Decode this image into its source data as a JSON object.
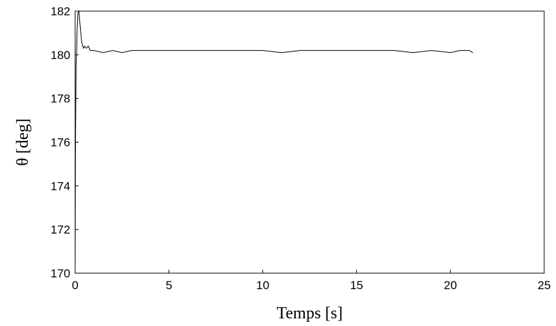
{
  "chart_data": {
    "type": "line",
    "title": "",
    "xlabel": "Temps [s]",
    "ylabel": "θ [deg]",
    "xlim": [
      0,
      25
    ],
    "ylim": [
      170,
      182
    ],
    "x_ticks": [
      0,
      5,
      10,
      15,
      20,
      25
    ],
    "y_ticks": [
      170,
      172,
      174,
      176,
      178,
      180,
      182
    ],
    "grid": false,
    "series": [
      {
        "x": [
          0.0,
          0.02,
          0.05,
          0.08,
          0.1,
          0.15,
          0.2,
          0.25,
          0.3,
          0.35,
          0.4,
          0.45,
          0.5,
          0.6,
          0.7,
          0.8,
          1.0,
          1.5,
          2.0,
          2.5,
          3.0,
          4.0,
          5.0,
          6.0,
          7.0,
          8.0,
          9.0,
          10.0,
          11.0,
          12.0,
          13.0,
          14.0,
          15.0,
          16.0,
          17.0,
          18.0,
          19.0,
          20.0,
          20.5,
          21.0,
          21.2
        ],
        "y": [
          170.0,
          176.0,
          179.5,
          180.3,
          181.0,
          181.9,
          182.0,
          181.5,
          181.0,
          180.6,
          180.4,
          180.3,
          180.4,
          180.3,
          180.4,
          180.2,
          180.2,
          180.1,
          180.2,
          180.1,
          180.2,
          180.2,
          180.2,
          180.2,
          180.2,
          180.2,
          180.2,
          180.2,
          180.1,
          180.2,
          180.2,
          180.2,
          180.2,
          180.2,
          180.2,
          180.1,
          180.2,
          180.1,
          180.2,
          180.2,
          180.1
        ]
      }
    ]
  }
}
